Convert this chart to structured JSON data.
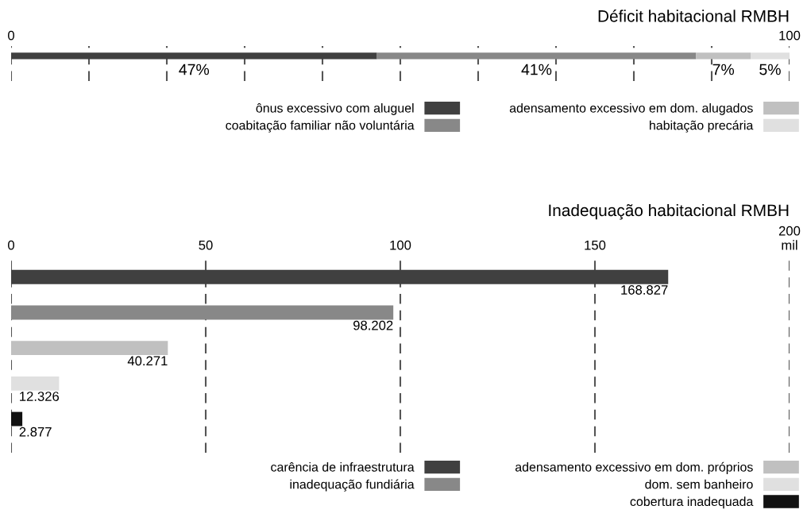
{
  "chart_data": [
    {
      "type": "bar",
      "title": "Déficit habitacional RMBH",
      "orientation": "horizontal",
      "stacked": true,
      "categories": [
        null
      ],
      "series": [
        {
          "name": "ônus excessivo com aluguel",
          "color": "#404040",
          "values": [
            47
          ],
          "value_labels": [
            "47%"
          ]
        },
        {
          "name": "coabitação familiar não voluntária",
          "color": "#888888",
          "values": [
            41
          ],
          "value_labels": [
            "41%"
          ]
        },
        {
          "name": "adensamento excessivo em dom. alugados",
          "color": "#c0c0c0",
          "values": [
            7
          ],
          "value_labels": [
            "7%"
          ]
        },
        {
          "name": "habitação precária",
          "color": "#e0e0e0",
          "values": [
            5
          ],
          "value_labels": [
            "5%"
          ]
        }
      ],
      "xlim": [
        0,
        100
      ],
      "xticks": [
        0,
        {
          "value": 10,
          "label": null
        },
        {
          "value": 20,
          "label": null
        },
        {
          "value": 30,
          "label": null
        },
        {
          "value": 40,
          "label": null
        },
        {
          "value": 50,
          "label": null
        },
        {
          "value": 60,
          "label": null
        },
        {
          "value": 70,
          "label": null
        },
        {
          "value": 80,
          "label": null
        },
        {
          "value": 90,
          "label": null
        },
        100
      ],
      "grid": "x",
      "legend": "bottom right"
    },
    {
      "type": "bar",
      "title": "Inadequação habitacional RMBH",
      "orientation": "horizontal",
      "categories": [
        null,
        null,
        null,
        null,
        null
      ],
      "series": [
        {
          "name": "carência de infraestrutura",
          "color": "#404040",
          "values": [
            168.827,
            null,
            null,
            null,
            null
          ],
          "value_labels": [
            "168.827",
            null,
            null,
            null,
            null
          ]
        },
        {
          "name": "inadequação fundiária",
          "color": "#888888",
          "values": [
            null,
            98.202,
            null,
            null,
            null
          ],
          "value_labels": [
            null,
            "98.202",
            null,
            null,
            null
          ]
        },
        {
          "name": "adensamento excessivo em dom. próprios",
          "color": "#c0c0c0",
          "values": [
            null,
            null,
            40.271,
            null,
            null
          ],
          "value_labels": [
            null,
            null,
            "40.271",
            null,
            null
          ]
        },
        {
          "name": "dom. sem banheiro",
          "color": "#e0e0e0",
          "values": [
            null,
            null,
            null,
            12.326,
            null
          ],
          "value_labels": [
            null,
            null,
            null,
            "12.326",
            null
          ]
        },
        {
          "name": "cobertura inadequada",
          "color": "#111111",
          "values": [
            null,
            null,
            null,
            null,
            2.877
          ],
          "value_labels": [
            null,
            null,
            null,
            null,
            "2.877"
          ]
        }
      ],
      "xlim": [
        0,
        200
      ],
      "xticks": [
        0,
        50,
        100,
        150,
        {
          "value": 200,
          "label": "200\nmil"
        }
      ],
      "grid": "x",
      "legend": "bottom right"
    }
  ]
}
